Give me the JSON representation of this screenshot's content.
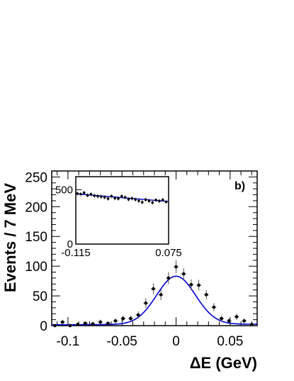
{
  "chart_data": [
    {
      "type": "scatter",
      "panel_label": "b)",
      "xlabel": "ΔE (GeV)",
      "ylabel": "Events / 7 MeV",
      "xlim": [
        -0.115,
        0.075
      ],
      "ylim": [
        0,
        260
      ],
      "x_ticks": [
        -0.1,
        -0.05,
        0,
        0.05
      ],
      "x_tick_labels": [
        "-0.1",
        "-0.05",
        "0",
        "0.05"
      ],
      "y_ticks": [
        0,
        50,
        100,
        150,
        200,
        250
      ],
      "y_tick_labels": [
        "0",
        "50",
        "100",
        "150",
        "200",
        "250"
      ],
      "grid": false,
      "series": [
        {
          "kind": "points_with_errors",
          "x": [
            -0.112,
            -0.105,
            -0.098,
            -0.091,
            -0.084,
            -0.077,
            -0.07,
            -0.063,
            -0.056,
            -0.049,
            -0.042,
            -0.035,
            -0.028,
            -0.021,
            -0.014,
            -0.007,
            0.0,
            0.007,
            0.014,
            0.021,
            0.028,
            0.035,
            0.042,
            0.049,
            0.056,
            0.063,
            0.07
          ],
          "y": [
            0,
            6,
            0,
            2,
            4,
            3,
            6,
            4,
            8,
            12,
            12,
            18,
            38,
            62,
            52,
            80,
            99,
            87,
            69,
            68,
            52,
            31,
            12,
            8,
            15,
            8,
            2
          ],
          "yerr": [
            3,
            4,
            3,
            3,
            3,
            3,
            4,
            3,
            4,
            5,
            5,
            6,
            8,
            9,
            9,
            10,
            11,
            10,
            9,
            9,
            8,
            7,
            5,
            4,
            5,
            4,
            3
          ]
        },
        {
          "kind": "fit_curve",
          "color": "#0000cc",
          "gaussian": {
            "amplitude": 81,
            "mean": 0.0,
            "sigma": 0.018
          },
          "background": {
            "at_x_min": 1.5,
            "at_x_max": 2.5
          }
        }
      ]
    },
    {
      "type": "scatter",
      "inset": true,
      "xlim": [
        -0.115,
        0.075
      ],
      "ylim": [
        0,
        620
      ],
      "x_tick_labels": [
        "-0.115",
        "0.075"
      ],
      "y_ticks": [
        0,
        500
      ],
      "y_tick_labels": [
        "0",
        "500"
      ],
      "series": [
        {
          "kind": "points_with_errors",
          "x": [
            -0.112,
            -0.105,
            -0.098,
            -0.091,
            -0.084,
            -0.077,
            -0.07,
            -0.063,
            -0.056,
            -0.049,
            -0.042,
            -0.035,
            -0.028,
            -0.021,
            -0.014,
            -0.007,
            0.0,
            0.007,
            0.014,
            0.021,
            0.028,
            0.035,
            0.042,
            0.049,
            0.056,
            0.063,
            0.07
          ],
          "y": [
            465,
            460,
            472,
            448,
            458,
            445,
            440,
            436,
            430,
            418,
            440,
            422,
            418,
            440,
            430,
            412,
            420,
            410,
            398,
            385,
            408,
            397,
            382,
            405,
            396,
            407,
            388
          ],
          "yerr": [
            20,
            20,
            20,
            20,
            20,
            20,
            20,
            20,
            20,
            20,
            20,
            20,
            20,
            20,
            20,
            20,
            20,
            20,
            20,
            20,
            20,
            20,
            20,
            20,
            20,
            20,
            20
          ]
        },
        {
          "kind": "fit_line",
          "color": "#0000cc",
          "at_x_min": 462,
          "at_x_max": 392
        }
      ]
    }
  ]
}
